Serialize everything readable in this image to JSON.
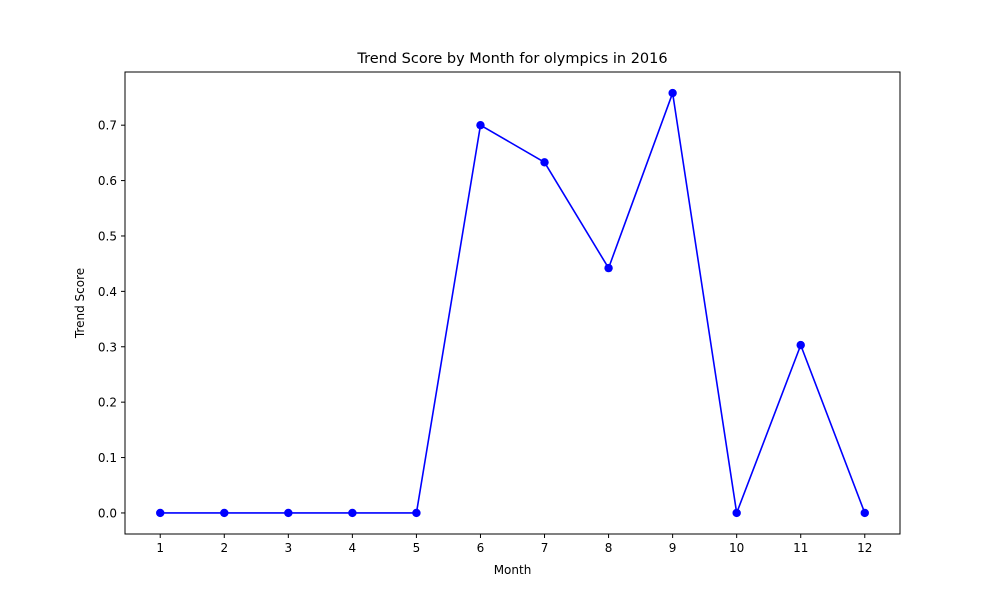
{
  "chart_data": {
    "type": "line",
    "title": "Trend Score by Month for olympics in 2016",
    "xlabel": "Month",
    "ylabel": "Trend Score",
    "x": [
      1,
      2,
      3,
      4,
      5,
      6,
      7,
      8,
      9,
      10,
      11,
      12
    ],
    "series": [
      {
        "values": [
          0.0,
          0.0,
          0.0,
          0.0,
          0.0,
          0.7,
          0.633,
          0.442,
          0.758,
          0.0,
          0.303,
          0.0
        ],
        "color": "#0000ff",
        "marker": "circle"
      }
    ],
    "xticks": [
      "1",
      "2",
      "3",
      "4",
      "5",
      "6",
      "7",
      "8",
      "9",
      "10",
      "11",
      "12"
    ],
    "yticks": [
      "0.0",
      "0.1",
      "0.2",
      "0.3",
      "0.4",
      "0.5",
      "0.6",
      "0.7"
    ],
    "xlim": [
      0.45,
      12.55
    ],
    "ylim": [
      -0.038,
      0.796
    ],
    "grid": false,
    "legend": "none"
  }
}
